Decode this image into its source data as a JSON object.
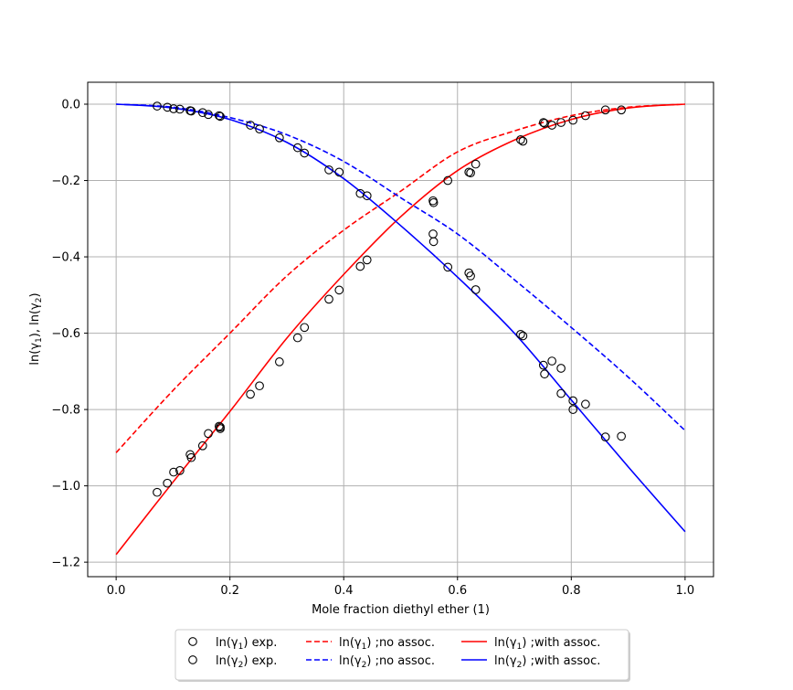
{
  "chart_data": {
    "type": "line",
    "title": "",
    "xlabel": "Mole fraction diethyl ether (1)",
    "ylabel": "ln(γ1), ln(γ2)",
    "xlim": [
      -0.05,
      1.05
    ],
    "ylim": [
      -1.238,
      0.0575
    ],
    "grid": true,
    "legend_placement": "bottom-center, below axes",
    "x_ticks": [
      "0.0",
      "0.2",
      "0.4",
      "0.6",
      "0.8",
      "1.0"
    ],
    "x_tick_values": [
      0,
      0.2,
      0.4,
      0.6,
      0.8,
      1.0
    ],
    "y_ticks": [
      "0.0",
      "−0.2",
      "−0.4",
      "−0.6",
      "−0.8",
      "−1.0",
      "−1.2"
    ],
    "y_tick_values": [
      0,
      -0.2,
      -0.4,
      -0.6,
      -0.8,
      -1.0,
      -1.2
    ],
    "series": [
      {
        "name": "ln(γ1) exp.",
        "label_main": "ln(γ",
        "label_sub": "1",
        "label_rest": ") exp.",
        "kind": "scatter",
        "color": "#000000",
        "x": [
          0.072,
          0.09,
          0.101,
          0.112,
          0.13,
          0.132,
          0.152,
          0.162,
          0.181,
          0.183,
          0.183,
          0.236,
          0.252,
          0.287,
          0.319,
          0.331,
          0.374,
          0.392,
          0.429,
          0.441,
          0.557,
          0.558,
          0.583,
          0.62,
          0.623,
          0.632,
          0.711,
          0.715,
          0.751,
          0.753,
          0.766,
          0.782,
          0.803,
          0.825,
          0.86,
          0.888
        ],
        "y": [
          -1.017,
          -0.993,
          -0.964,
          -0.96,
          -0.918,
          -0.926,
          -0.895,
          -0.863,
          -0.844,
          -0.85,
          -0.846,
          -0.76,
          -0.738,
          -0.675,
          -0.612,
          -0.585,
          -0.511,
          -0.487,
          -0.425,
          -0.408,
          -0.253,
          -0.258,
          -0.2,
          -0.178,
          -0.18,
          -0.157,
          -0.093,
          -0.097,
          -0.048,
          -0.05,
          -0.055,
          -0.048,
          -0.042,
          -0.03,
          -0.015,
          -0.015
        ]
      },
      {
        "name": "ln(γ2) exp.",
        "label_main": "ln(γ",
        "label_sub": "2",
        "label_rest": ") exp.",
        "kind": "scatter",
        "color": "#000000",
        "x": [
          0.072,
          0.09,
          0.101,
          0.112,
          0.13,
          0.132,
          0.152,
          0.162,
          0.181,
          0.183,
          0.236,
          0.252,
          0.287,
          0.319,
          0.331,
          0.374,
          0.392,
          0.429,
          0.441,
          0.557,
          0.558,
          0.583,
          0.62,
          0.623,
          0.632,
          0.711,
          0.715,
          0.751,
          0.753,
          0.766,
          0.782,
          0.782,
          0.803,
          0.803,
          0.825,
          0.86,
          0.888
        ],
        "y": [
          -0.005,
          -0.008,
          -0.012,
          -0.013,
          -0.017,
          -0.018,
          -0.022,
          -0.027,
          -0.03,
          -0.032,
          -0.055,
          -0.065,
          -0.088,
          -0.114,
          -0.128,
          -0.172,
          -0.178,
          -0.234,
          -0.24,
          -0.34,
          -0.36,
          -0.427,
          -0.442,
          -0.45,
          -0.486,
          -0.603,
          -0.607,
          -0.684,
          -0.707,
          -0.673,
          -0.692,
          -0.758,
          -0.777,
          -0.8,
          -0.786,
          -0.872,
          -0.87
        ]
      },
      {
        "name": "ln(γ1) ;no assoc.",
        "label_main": "ln(γ",
        "label_sub": "1",
        "label_rest": ") ;no assoc.",
        "kind": "line",
        "dash": true,
        "color": "#ff0000",
        "x": [
          0,
          0.1,
          0.2,
          0.3,
          0.4,
          0.5,
          0.6,
          0.7,
          0.8,
          0.9,
          1.0
        ],
        "y": [
          -0.913,
          -0.75,
          -0.6,
          -0.45,
          -0.33,
          -0.228,
          -0.125,
          -0.07,
          -0.03,
          -0.008,
          0
        ]
      },
      {
        "name": "ln(γ2) ;no assoc.",
        "label_main": "ln(γ",
        "label_sub": "2",
        "label_rest": ") ;no assoc.",
        "kind": "line",
        "dash": true,
        "color": "#0000ff",
        "x": [
          0,
          0.1,
          0.2,
          0.3,
          0.4,
          0.5,
          0.6,
          0.7,
          0.8,
          0.9,
          1.0
        ],
        "y": [
          0,
          -0.008,
          -0.035,
          -0.08,
          -0.15,
          -0.245,
          -0.34,
          -0.46,
          -0.585,
          -0.715,
          -0.855
        ]
      },
      {
        "name": "ln(γ1) ;with assoc.",
        "label_main": "ln(γ",
        "label_sub": "1",
        "label_rest": ") ;with assoc.",
        "kind": "line",
        "dash": false,
        "color": "#ff0000",
        "x": [
          0,
          0.1,
          0.2,
          0.3,
          0.4,
          0.5,
          0.6,
          0.7,
          0.8,
          0.9,
          1.0
        ],
        "y": [
          -1.18,
          -0.99,
          -0.805,
          -0.613,
          -0.446,
          -0.295,
          -0.174,
          -0.094,
          -0.04,
          -0.01,
          0
        ]
      },
      {
        "name": "ln(γ2) ;with assoc.",
        "label_main": "ln(γ",
        "label_sub": "2",
        "label_rest": ") ;with assoc.",
        "kind": "line",
        "dash": false,
        "color": "#0000ff",
        "x": [
          0,
          0.1,
          0.2,
          0.3,
          0.4,
          0.5,
          0.6,
          0.7,
          0.8,
          0.9,
          1.0
        ],
        "y": [
          0,
          -0.01,
          -0.04,
          -0.1,
          -0.195,
          -0.318,
          -0.453,
          -0.6,
          -0.775,
          -0.95,
          -1.12
        ]
      }
    ]
  }
}
